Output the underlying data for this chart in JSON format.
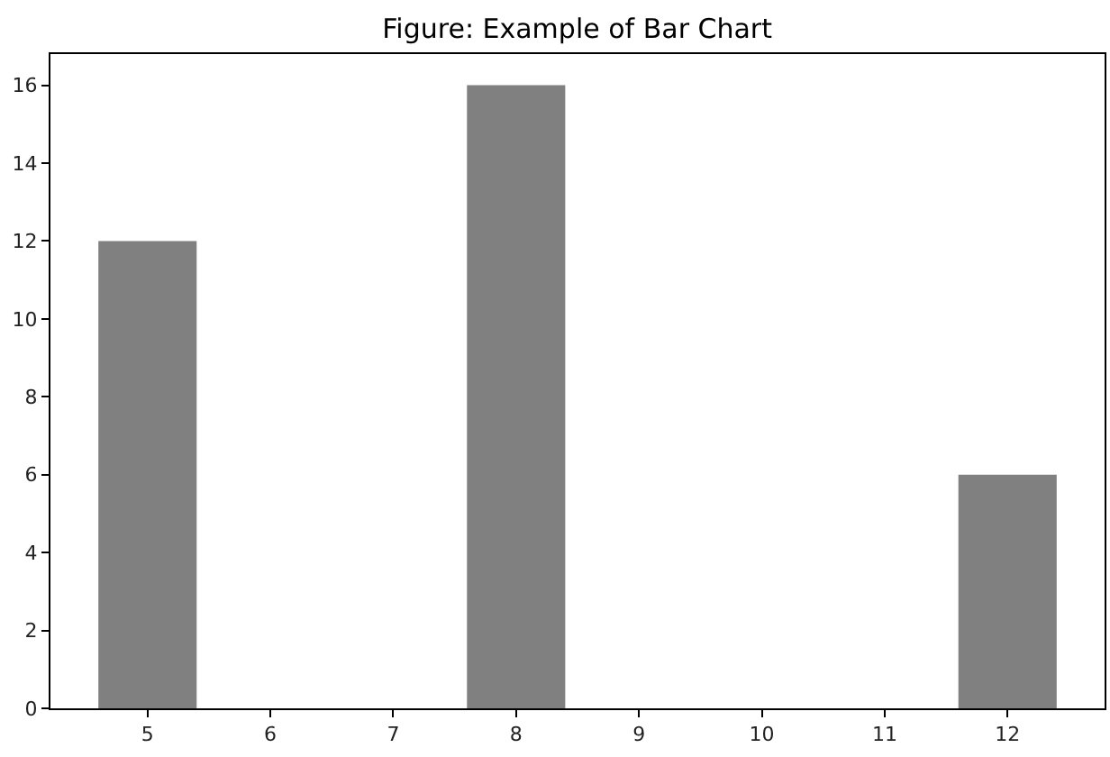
{
  "chart_data": {
    "type": "bar",
    "title": "Figure: Example of Bar Chart",
    "x": [
      5,
      8,
      12
    ],
    "values": [
      12,
      16,
      6
    ],
    "color": "#808080",
    "xlim": [
      4.21,
      12.79
    ],
    "xticks": [
      5,
      6,
      7,
      8,
      9,
      10,
      11,
      12
    ],
    "ylim": [
      0,
      16.8
    ],
    "yticks": [
      0,
      2,
      4,
      6,
      8,
      10,
      12,
      14,
      16
    ],
    "grid": false,
    "legend": false
  }
}
